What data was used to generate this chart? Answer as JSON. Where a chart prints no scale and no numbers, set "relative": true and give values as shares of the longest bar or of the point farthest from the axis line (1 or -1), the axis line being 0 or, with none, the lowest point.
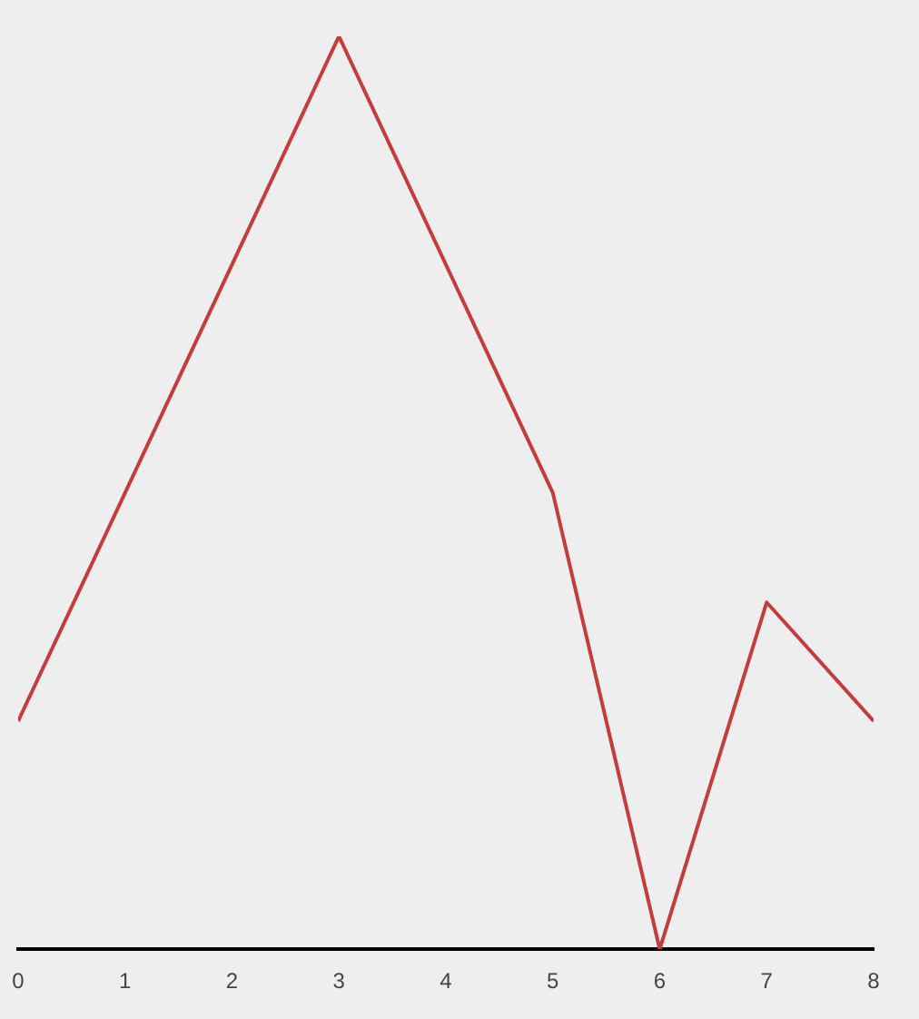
{
  "chart_data": {
    "type": "line",
    "relative": true,
    "x": [
      0,
      3,
      5,
      6,
      7,
      8
    ],
    "xlim": [
      0,
      8
    ],
    "xticks": [
      0,
      1,
      2,
      3,
      4,
      5,
      6,
      7,
      8
    ],
    "series": [
      {
        "color": "#c43c3c",
        "values": [
          0.25,
          1,
          0.5,
          0,
          0.38,
          0.25
        ]
      }
    ],
    "marker": "none",
    "line_style": "solid",
    "grid": false,
    "legend": false
  }
}
